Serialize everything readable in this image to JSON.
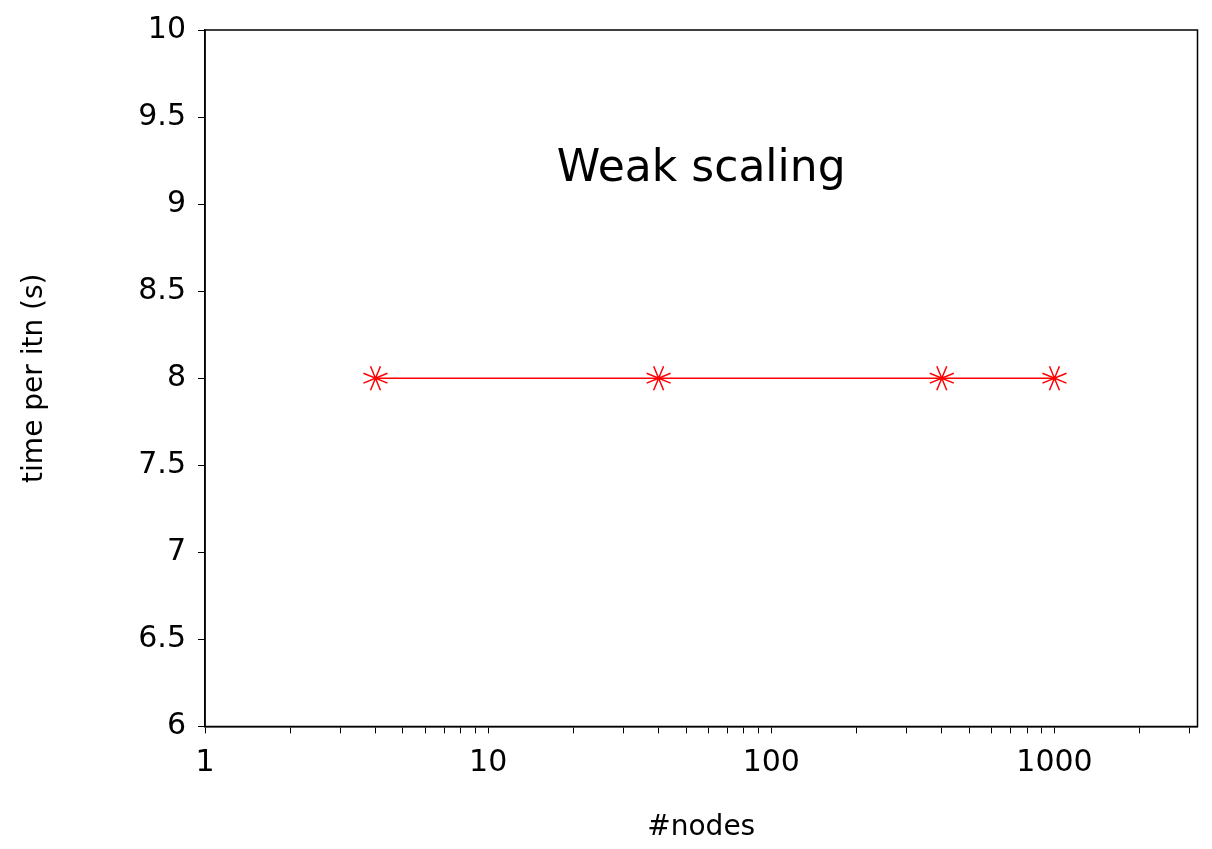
{
  "chart_data": {
    "type": "line",
    "title": "Weak scaling",
    "xlabel": "#nodes",
    "ylabel": "time per itn (s)",
    "x": [
      4,
      40,
      400,
      1000
    ],
    "series": [
      {
        "color": "#ff0000",
        "values": [
          8,
          8,
          8,
          8
        ]
      }
    ],
    "log": "x",
    "xlim": [
      1,
      3200
    ],
    "xticks": [
      1,
      {
        "value": 2,
        "label": null
      },
      {
        "value": 3,
        "label": null
      },
      {
        "value": 4,
        "label": null
      },
      {
        "value": 5,
        "label": null
      },
      {
        "value": 6,
        "label": null
      },
      {
        "value": 7,
        "label": null
      },
      {
        "value": 8,
        "label": null
      },
      {
        "value": 9,
        "label": null
      },
      10,
      {
        "value": 20,
        "label": null
      },
      {
        "value": 30,
        "label": null
      },
      {
        "value": 40,
        "label": null
      },
      {
        "value": 50,
        "label": null
      },
      {
        "value": 60,
        "label": null
      },
      {
        "value": 70,
        "label": null
      },
      {
        "value": 80,
        "label": null
      },
      {
        "value": 90,
        "label": null
      },
      100,
      {
        "value": 200,
        "label": null
      },
      {
        "value": 300,
        "label": null
      },
      {
        "value": 400,
        "label": null
      },
      {
        "value": 500,
        "label": null
      },
      {
        "value": 600,
        "label": null
      },
      {
        "value": 700,
        "label": null
      },
      {
        "value": 800,
        "label": null
      },
      {
        "value": 900,
        "label": null
      },
      1000,
      {
        "value": 2000,
        "label": null
      },
      {
        "value": 3000,
        "label": null
      }
    ],
    "ylim": [
      6,
      10
    ],
    "yticks": [
      6,
      6.5,
      7,
      7.5,
      8,
      8.5,
      9,
      9.5,
      10
    ],
    "grid": false,
    "legend": false,
    "marker": "cross",
    "line_style": "solid"
  }
}
